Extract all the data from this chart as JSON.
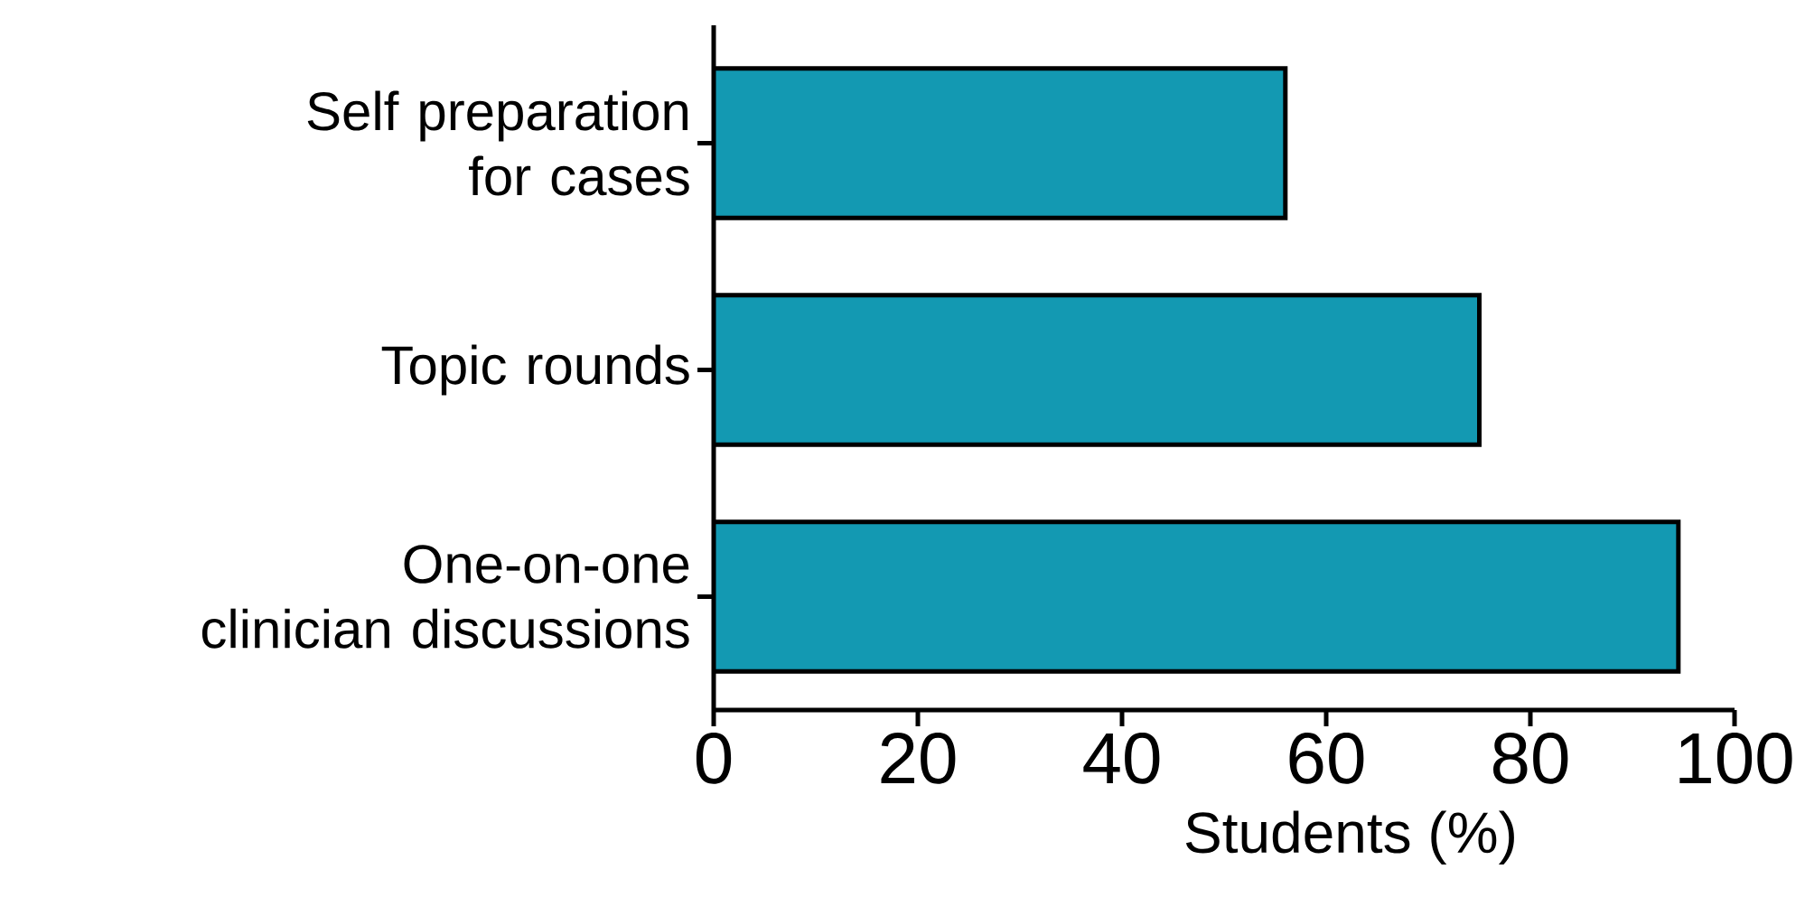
{
  "chart_data": {
    "type": "bar",
    "orientation": "horizontal",
    "xlabel": "Students (%)",
    "categories": [
      "Self preparation for cases",
      "Topic rounds",
      "One-on-one clinician discussions"
    ],
    "values": [
      56,
      75,
      94.5
    ],
    "color": "#1399b2",
    "xlim": [
      0,
      100
    ],
    "xticks": [
      0,
      20,
      40,
      60,
      80,
      100
    ]
  }
}
